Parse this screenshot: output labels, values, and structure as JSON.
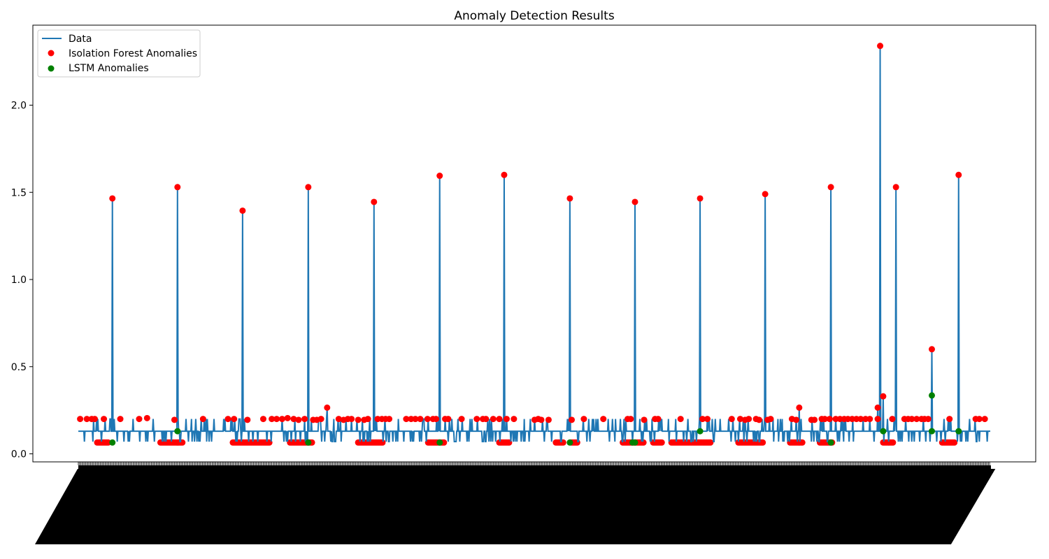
{
  "chart_data": {
    "type": "line",
    "title": "Anomaly Detection Results",
    "xlabel": "",
    "ylabel": "",
    "ylim": [
      -0.05,
      2.45
    ],
    "yticks": [
      0.0,
      0.5,
      1.0,
      1.5,
      2.0
    ],
    "ytick_labels": [
      "0.0",
      "0.5",
      "1.0",
      "1.5",
      "2.0"
    ],
    "xtick_labels_legible": false,
    "legend_position": "upper-left",
    "grid": false,
    "colors": {
      "data": "#1f77b4",
      "isolation_forest": "#ff0000",
      "lstm": "#008000"
    },
    "series_names": {
      "data": "Data",
      "isolation_forest": "Isolation Forest Anomalies",
      "lstm": "LSTM Anomalies"
    },
    "n_points": 1500,
    "baseline": {
      "low": 0.07,
      "high": 0.13
    },
    "spikes": [
      {
        "x": 56,
        "y": 1.465
      },
      {
        "x": 163,
        "y": 1.53
      },
      {
        "x": 270,
        "y": 1.395
      },
      {
        "x": 378,
        "y": 1.53
      },
      {
        "x": 486,
        "y": 1.445
      },
      {
        "x": 594,
        "y": 1.595
      },
      {
        "x": 700,
        "y": 1.6
      },
      {
        "x": 808,
        "y": 1.465
      },
      {
        "x": 915,
        "y": 1.445
      },
      {
        "x": 1022,
        "y": 1.465
      },
      {
        "x": 1129,
        "y": 1.49
      },
      {
        "x": 1237,
        "y": 1.53
      },
      {
        "x": 1318,
        "y": 2.34
      },
      {
        "x": 1344,
        "y": 1.53
      },
      {
        "x": 1403,
        "y": 0.6
      },
      {
        "x": 1447,
        "y": 1.6
      }
    ],
    "minor_spikes": [
      {
        "x": 409,
        "y": 0.265
      },
      {
        "x": 1185,
        "y": 0.265
      },
      {
        "x": 1314,
        "y": 0.265
      },
      {
        "x": 1323,
        "y": 0.33
      }
    ],
    "isolation_forest_points": [
      {
        "x": 3,
        "y": 0.2
      },
      {
        "x": 14,
        "y": 0.2
      },
      {
        "x": 22,
        "y": 0.2
      },
      {
        "x": 27,
        "y": 0.2
      },
      {
        "x": 42,
        "y": 0.2
      },
      {
        "x": 56,
        "y": 1.465
      },
      {
        "x": 69,
        "y": 0.2
      },
      {
        "x": 100,
        "y": 0.2
      },
      {
        "x": 113,
        "y": 0.205
      },
      {
        "x": 158,
        "y": 0.195
      },
      {
        "x": 163,
        "y": 1.53
      },
      {
        "x": 205,
        "y": 0.2
      },
      {
        "x": 246,
        "y": 0.2
      },
      {
        "x": 256,
        "y": 0.2
      },
      {
        "x": 270,
        "y": 1.395
      },
      {
        "x": 278,
        "y": 0.195
      },
      {
        "x": 304,
        "y": 0.2
      },
      {
        "x": 318,
        "y": 0.2
      },
      {
        "x": 326,
        "y": 0.2
      },
      {
        "x": 335,
        "y": 0.2
      },
      {
        "x": 344,
        "y": 0.205
      },
      {
        "x": 354,
        "y": 0.2
      },
      {
        "x": 362,
        "y": 0.195
      },
      {
        "x": 372,
        "y": 0.2
      },
      {
        "x": 378,
        "y": 1.53
      },
      {
        "x": 386,
        "y": 0.195
      },
      {
        "x": 392,
        "y": 0.195
      },
      {
        "x": 399,
        "y": 0.2
      },
      {
        "x": 409,
        "y": 0.265
      },
      {
        "x": 428,
        "y": 0.2
      },
      {
        "x": 436,
        "y": 0.195
      },
      {
        "x": 443,
        "y": 0.2
      },
      {
        "x": 449,
        "y": 0.2
      },
      {
        "x": 460,
        "y": 0.195
      },
      {
        "x": 470,
        "y": 0.195
      },
      {
        "x": 476,
        "y": 0.2
      },
      {
        "x": 486,
        "y": 1.445
      },
      {
        "x": 492,
        "y": 0.2
      },
      {
        "x": 499,
        "y": 0.2
      },
      {
        "x": 505,
        "y": 0.2
      },
      {
        "x": 511,
        "y": 0.2
      },
      {
        "x": 539,
        "y": 0.2
      },
      {
        "x": 547,
        "y": 0.2
      },
      {
        "x": 554,
        "y": 0.2
      },
      {
        "x": 562,
        "y": 0.2
      },
      {
        "x": 574,
        "y": 0.2
      },
      {
        "x": 583,
        "y": 0.2
      },
      {
        "x": 588,
        "y": 0.2
      },
      {
        "x": 594,
        "y": 1.595
      },
      {
        "x": 603,
        "y": 0.2
      },
      {
        "x": 608,
        "y": 0.2
      },
      {
        "x": 630,
        "y": 0.2
      },
      {
        "x": 655,
        "y": 0.2
      },
      {
        "x": 665,
        "y": 0.2
      },
      {
        "x": 670,
        "y": 0.2
      },
      {
        "x": 682,
        "y": 0.2
      },
      {
        "x": 692,
        "y": 0.2
      },
      {
        "x": 700,
        "y": 1.6
      },
      {
        "x": 704,
        "y": 0.2
      },
      {
        "x": 716,
        "y": 0.2
      },
      {
        "x": 750,
        "y": 0.195
      },
      {
        "x": 756,
        "y": 0.2
      },
      {
        "x": 761,
        "y": 0.195
      },
      {
        "x": 773,
        "y": 0.195
      },
      {
        "x": 808,
        "y": 1.465
      },
      {
        "x": 811,
        "y": 0.195
      },
      {
        "x": 831,
        "y": 0.2
      },
      {
        "x": 863,
        "y": 0.2
      },
      {
        "x": 903,
        "y": 0.2
      },
      {
        "x": 908,
        "y": 0.2
      },
      {
        "x": 915,
        "y": 1.445
      },
      {
        "x": 930,
        "y": 0.195
      },
      {
        "x": 948,
        "y": 0.2
      },
      {
        "x": 953,
        "y": 0.2
      },
      {
        "x": 990,
        "y": 0.2
      },
      {
        "x": 1022,
        "y": 1.465
      },
      {
        "x": 1026,
        "y": 0.2
      },
      {
        "x": 1034,
        "y": 0.2
      },
      {
        "x": 1074,
        "y": 0.2
      },
      {
        "x": 1088,
        "y": 0.2
      },
      {
        "x": 1096,
        "y": 0.195
      },
      {
        "x": 1102,
        "y": 0.2
      },
      {
        "x": 1114,
        "y": 0.2
      },
      {
        "x": 1119,
        "y": 0.195
      },
      {
        "x": 1129,
        "y": 1.49
      },
      {
        "x": 1133,
        "y": 0.195
      },
      {
        "x": 1138,
        "y": 0.2
      },
      {
        "x": 1173,
        "y": 0.2
      },
      {
        "x": 1180,
        "y": 0.195
      },
      {
        "x": 1185,
        "y": 0.265
      },
      {
        "x": 1205,
        "y": 0.195
      },
      {
        "x": 1210,
        "y": 0.195
      },
      {
        "x": 1222,
        "y": 0.2
      },
      {
        "x": 1227,
        "y": 0.2
      },
      {
        "x": 1235,
        "y": 0.2
      },
      {
        "x": 1237,
        "y": 1.53
      },
      {
        "x": 1245,
        "y": 0.2
      },
      {
        "x": 1252,
        "y": 0.2
      },
      {
        "x": 1259,
        "y": 0.2
      },
      {
        "x": 1265,
        "y": 0.2
      },
      {
        "x": 1272,
        "y": 0.2
      },
      {
        "x": 1279,
        "y": 0.2
      },
      {
        "x": 1286,
        "y": 0.2
      },
      {
        "x": 1294,
        "y": 0.2
      },
      {
        "x": 1301,
        "y": 0.2
      },
      {
        "x": 1314,
        "y": 0.265
      },
      {
        "x": 1314,
        "y": 0.2
      },
      {
        "x": 1318,
        "y": 2.34
      },
      {
        "x": 1323,
        "y": 0.33
      },
      {
        "x": 1338,
        "y": 0.2
      },
      {
        "x": 1344,
        "y": 1.53
      },
      {
        "x": 1358,
        "y": 0.2
      },
      {
        "x": 1364,
        "y": 0.2
      },
      {
        "x": 1370,
        "y": 0.2
      },
      {
        "x": 1378,
        "y": 0.2
      },
      {
        "x": 1386,
        "y": 0.2
      },
      {
        "x": 1391,
        "y": 0.2
      },
      {
        "x": 1397,
        "y": 0.2
      },
      {
        "x": 1403,
        "y": 0.6
      },
      {
        "x": 1432,
        "y": 0.2
      },
      {
        "x": 1447,
        "y": 1.6
      },
      {
        "x": 1475,
        "y": 0.2
      },
      {
        "x": 1481,
        "y": 0.2
      },
      {
        "x": 1490,
        "y": 0.2
      }
    ],
    "isolation_forest_low_runs": [
      [
        31,
        50
      ],
      [
        135,
        172
      ],
      [
        254,
        314
      ],
      [
        348,
        384
      ],
      [
        460,
        500
      ],
      [
        575,
        602
      ],
      [
        692,
        708
      ],
      [
        785,
        798
      ],
      [
        810,
        820
      ],
      [
        895,
        930
      ],
      [
        945,
        960
      ],
      [
        975,
        1040
      ],
      [
        1085,
        1125
      ],
      [
        1170,
        1190
      ],
      [
        1219,
        1240
      ],
      [
        1323,
        1340
      ],
      [
        1420,
        1440
      ]
    ],
    "lstm_points": [
      {
        "x": 56,
        "y": 0.065
      },
      {
        "x": 163,
        "y": 0.13
      },
      {
        "x": 378,
        "y": 0.065
      },
      {
        "x": 594,
        "y": 0.065
      },
      {
        "x": 808,
        "y": 0.065
      },
      {
        "x": 911,
        "y": 0.065
      },
      {
        "x": 915,
        "y": 0.065
      },
      {
        "x": 1022,
        "y": 0.13
      },
      {
        "x": 1237,
        "y": 0.065
      },
      {
        "x": 1323,
        "y": 0.13
      },
      {
        "x": 1403,
        "y": 0.335
      },
      {
        "x": 1403,
        "y": 0.13
      },
      {
        "x": 1447,
        "y": 0.13
      }
    ]
  }
}
